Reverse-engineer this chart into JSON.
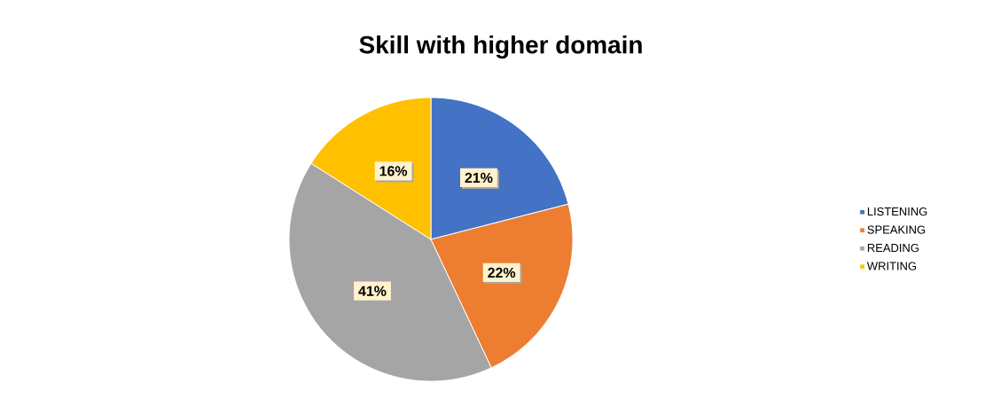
{
  "chart_data": {
    "type": "pie",
    "title": "Skill with higher domain",
    "categories": [
      "LISTENING",
      "SPEAKING",
      "READING",
      "WRITING"
    ],
    "values": [
      21,
      22,
      41,
      16
    ],
    "value_labels": [
      "21%",
      "22%",
      "41%",
      "16%"
    ],
    "colors": [
      "#4472c4",
      "#ed7d31",
      "#a5a5a5",
      "#ffc000"
    ],
    "legend": "right"
  }
}
